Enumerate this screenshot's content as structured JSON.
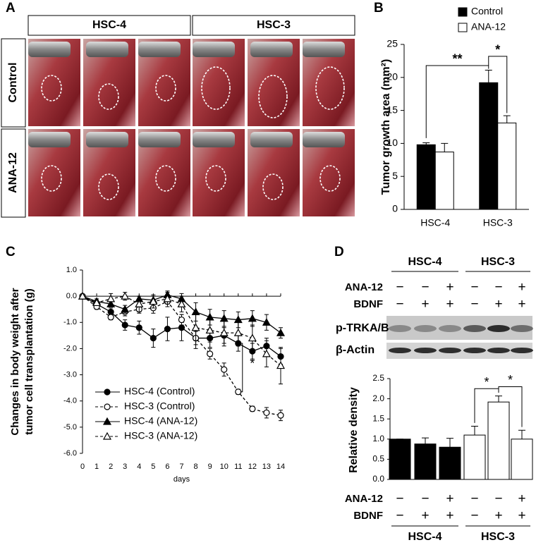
{
  "panel_labels": [
    "A",
    "B",
    "C",
    "D"
  ],
  "panel_a": {
    "columns": [
      "HSC-4",
      "HSC-3"
    ],
    "rows": [
      "Control",
      "ANA-12"
    ]
  },
  "blot": {
    "groups": [
      "HSC-4",
      "HSC-3"
    ],
    "row_labels": [
      "ANA-12",
      "BDNF"
    ],
    "signs": [
      [
        "−",
        "−",
        "+",
        "−",
        "−",
        "+"
      ],
      [
        "−",
        "+",
        "+",
        "−",
        "+",
        "+"
      ]
    ],
    "bands": [
      "p-TRKA/B",
      "β-Actin"
    ]
  },
  "chart_data": [
    {
      "type": "bar",
      "ylabel": "Tumor growth  area (mm²)",
      "categories": [
        "HSC-4",
        "HSC-3"
      ],
      "series": [
        {
          "name": "Control",
          "color": "#000000",
          "values": [
            9.8,
            19.2
          ],
          "errors": [
            0.3,
            1.9
          ]
        },
        {
          "name": "ANA-12",
          "color": "#ffffff",
          "values": [
            8.7,
            13.1
          ],
          "errors": [
            1.3,
            1.1
          ]
        }
      ],
      "ylim": [
        0,
        25
      ],
      "yticks": [
        0,
        5,
        10,
        15,
        20,
        25
      ],
      "annotations": [
        "**",
        "*"
      ],
      "legend": "top"
    },
    {
      "type": "line",
      "ylabel": [
        "Changes in body weight after",
        "tumor cell transplantation (g)"
      ],
      "xlabel": "days",
      "x": [
        0,
        1,
        2,
        3,
        4,
        5,
        6,
        7,
        8,
        9,
        10,
        11,
        12,
        13,
        14
      ],
      "xlim": [
        0,
        14
      ],
      "xticks": [
        0,
        1,
        2,
        3,
        4,
        5,
        6,
        7,
        8,
        9,
        10,
        11,
        12,
        13,
        14
      ],
      "ylim": [
        -6,
        1
      ],
      "yticks": [
        {
          "value": -6,
          "label": "-6.0"
        },
        {
          "value": -5,
          "label": "-5.0"
        },
        {
          "value": -4,
          "label": "-4.0"
        },
        {
          "value": -3,
          "label": "-3.0"
        },
        {
          "value": -2,
          "label": "-2.0"
        },
        {
          "value": -1,
          "label": "-1.0"
        },
        {
          "value": 0,
          "label": "0.0"
        },
        {
          "value": 1,
          "label": "1.0"
        }
      ],
      "series": [
        {
          "name": "HSC-4 (Control)",
          "color": "#000000",
          "dashed": false,
          "marker": "circle",
          "filled": true,
          "values": [
            0,
            -0.3,
            -0.6,
            -1.1,
            -1.2,
            -1.6,
            -1.25,
            -1.2,
            -1.6,
            -1.6,
            -1.5,
            -1.8,
            -2.1,
            -1.9,
            -2.3
          ],
          "errors": [
            0,
            0.1,
            0.15,
            0.2,
            0.25,
            0.35,
            0.45,
            0.5,
            0.4,
            0.35,
            0.3,
            0.3,
            0.3,
            0.3,
            0.3
          ]
        },
        {
          "name": "HSC-3 (Control)",
          "color": "#000000",
          "dashed": true,
          "marker": "circle",
          "filled": false,
          "values": [
            0,
            -0.4,
            -0.8,
            -0.6,
            -0.5,
            -0.45,
            -0.2,
            -0.9,
            -1.6,
            -2.2,
            -2.8,
            -3.65,
            -4.3,
            -4.45,
            -4.55
          ],
          "errors": [
            0,
            0.1,
            0.1,
            0.15,
            0.15,
            0.2,
            0.1,
            0.2,
            0.25,
            0.2,
            0.25,
            0.1,
            0.1,
            0.2,
            0.2
          ]
        },
        {
          "name": "HSC-4 (ANA-12)",
          "color": "#000000",
          "dashed": false,
          "marker": "triangle",
          "filled": true,
          "values": [
            0,
            -0.2,
            -0.3,
            -0.5,
            -0.1,
            -0.15,
            0.05,
            -0.1,
            -0.6,
            -0.8,
            -0.85,
            -0.9,
            -0.85,
            -1.0,
            -1.4
          ],
          "errors": [
            0,
            0.1,
            0.1,
            0.15,
            0.1,
            0.15,
            0.1,
            0.2,
            0.35,
            0.3,
            0.3,
            0.3,
            0.3,
            0.3,
            0.2
          ]
        },
        {
          "name": "HSC-3 (ANA-12)",
          "color": "#000000",
          "dashed": true,
          "marker": "triangle",
          "filled": false,
          "values": [
            0,
            -0.25,
            -0.1,
            0.0,
            -0.3,
            -0.2,
            -0.1,
            -0.3,
            -1.2,
            -1.3,
            -1.4,
            -1.4,
            -1.6,
            -2.2,
            -2.65
          ],
          "errors": [
            0,
            0.1,
            0.2,
            0.15,
            0.3,
            0.25,
            0.3,
            0.3,
            0.5,
            0.45,
            0.5,
            0.5,
            0.5,
            0.5,
            0.7
          ]
        }
      ],
      "annotations": [
        "*"
      ]
    },
    {
      "type": "bar",
      "ylabel": "Relative density",
      "categories": [
        null,
        null,
        null,
        null,
        null,
        null
      ],
      "values": [
        1.0,
        0.88,
        0.8,
        1.1,
        1.92,
        1.0
      ],
      "errors": [
        0,
        0.15,
        0.22,
        0.22,
        0.15,
        0.22
      ],
      "colors": [
        "#000000",
        "#000000",
        "#000000",
        "#ffffff",
        "#ffffff",
        "#ffffff"
      ],
      "ylim": [
        0,
        2.5
      ],
      "yticks": [
        {
          "value": 0,
          "label": "0.0"
        },
        {
          "value": 0.5,
          "label": "0.5"
        },
        {
          "value": 1,
          "label": "1.0"
        },
        {
          "value": 1.5,
          "label": "1.5"
        },
        {
          "value": 2,
          "label": "2.0"
        },
        {
          "value": 2.5,
          "label": "2.5"
        }
      ],
      "annotations": [
        "*",
        "*"
      ]
    }
  ]
}
